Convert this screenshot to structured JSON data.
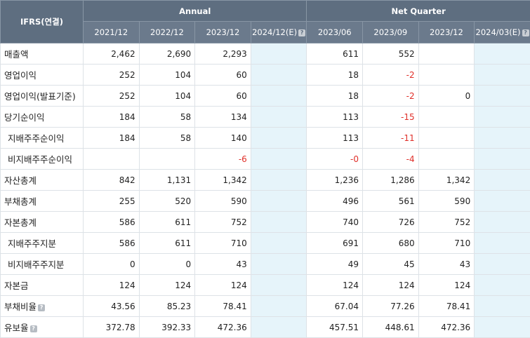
{
  "header": {
    "corner": "IFRS(연결)",
    "annual_label": "Annual",
    "quarter_label": "Net Quarter",
    "periods": [
      "2021/12",
      "2022/12",
      "2023/12",
      "2024/12(E)",
      "2023/06",
      "2023/09",
      "2023/12",
      "2024/03(E)"
    ]
  },
  "rows": [
    {
      "label": "매출액",
      "sub": false,
      "values": [
        "2,462",
        "2,690",
        "2,293",
        "",
        "611",
        "552",
        "",
        ""
      ]
    },
    {
      "label": "영업이익",
      "sub": false,
      "values": [
        "252",
        "104",
        "60",
        "",
        "18",
        "-2",
        "",
        ""
      ]
    },
    {
      "label": "영업이익(발표기준)",
      "sub": false,
      "values": [
        "252",
        "104",
        "60",
        "",
        "18",
        "-2",
        "0",
        ""
      ]
    },
    {
      "label": "당기순이익",
      "sub": false,
      "values": [
        "184",
        "58",
        "134",
        "",
        "113",
        "-15",
        "",
        ""
      ]
    },
    {
      "label": "지배주주순이익",
      "sub": true,
      "values": [
        "184",
        "58",
        "140",
        "",
        "113",
        "-11",
        "",
        ""
      ]
    },
    {
      "label": "비지배주주순이익",
      "sub": true,
      "values": [
        "",
        "",
        "-6",
        "",
        "-0",
        "-4",
        "",
        ""
      ]
    },
    {
      "label": "자산총계",
      "sub": false,
      "values": [
        "842",
        "1,131",
        "1,342",
        "",
        "1,236",
        "1,286",
        "1,342",
        ""
      ]
    },
    {
      "label": "부채총계",
      "sub": false,
      "values": [
        "255",
        "520",
        "590",
        "",
        "496",
        "561",
        "590",
        ""
      ]
    },
    {
      "label": "자본총계",
      "sub": false,
      "values": [
        "586",
        "611",
        "752",
        "",
        "740",
        "726",
        "752",
        ""
      ]
    },
    {
      "label": "지배주주지분",
      "sub": true,
      "values": [
        "586",
        "611",
        "710",
        "",
        "691",
        "680",
        "710",
        ""
      ]
    },
    {
      "label": "비지배주주지분",
      "sub": true,
      "values": [
        "0",
        "0",
        "43",
        "",
        "49",
        "45",
        "43",
        ""
      ]
    },
    {
      "label": "자본금",
      "sub": false,
      "values": [
        "124",
        "124",
        "124",
        "",
        "124",
        "124",
        "124",
        ""
      ]
    },
    {
      "label": "부채비율",
      "sub": false,
      "help": true,
      "values": [
        "43.56",
        "85.23",
        "78.41",
        "",
        "67.04",
        "77.26",
        "78.41",
        ""
      ]
    },
    {
      "label": "유보율",
      "sub": false,
      "help": true,
      "values": [
        "372.78",
        "392.33",
        "472.36",
        "",
        "457.51",
        "448.61",
        "472.36",
        ""
      ]
    }
  ],
  "help_glyph": "?",
  "estimate_columns": [
    3,
    7
  ]
}
